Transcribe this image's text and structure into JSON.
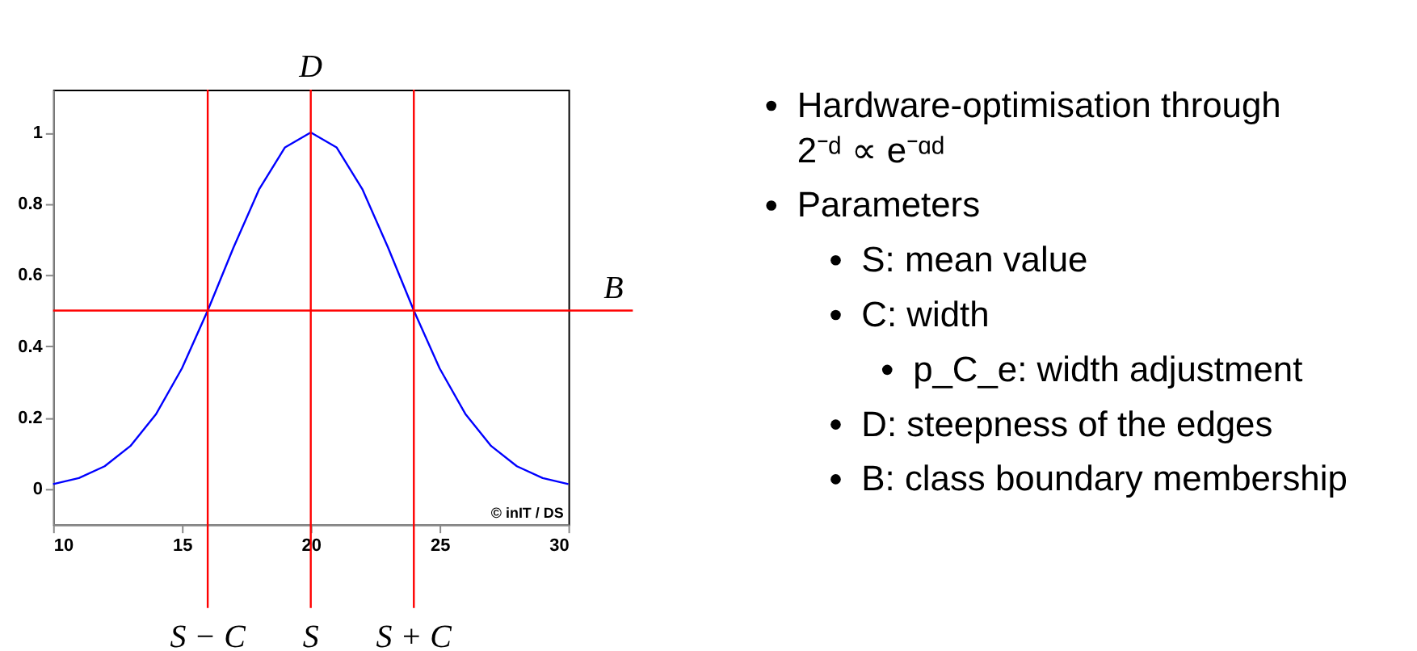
{
  "chart_data": [
    {
      "type": "line",
      "x": [
        10,
        11,
        12,
        13,
        14,
        15,
        16,
        17,
        18,
        19,
        20,
        21,
        22,
        23,
        24,
        25,
        26,
        27,
        28,
        29,
        30
      ],
      "series": [
        {
          "color": "#0000ff",
          "values": [
            0.013,
            0.03,
            0.063,
            0.12,
            0.21,
            0.338,
            0.5,
            0.677,
            0.841,
            0.958,
            1,
            0.958,
            0.841,
            0.677,
            0.5,
            0.338,
            0.21,
            0.12,
            0.063,
            0.03,
            0.013
          ]
        }
      ],
      "xlim": [
        10,
        30
      ],
      "xticks": [
        10,
        15,
        20,
        25,
        30
      ],
      "ylim": [
        -0.1,
        1.12
      ],
      "yticks": [
        0,
        0.2,
        0.4,
        0.6,
        0.8,
        1
      ],
      "grid": false,
      "marker": "none",
      "line_style": "solid",
      "ref_lines": [
        {
          "axis": "y",
          "value": 0.5,
          "label": "B",
          "color": "#ff0000"
        },
        {
          "axis": "x",
          "value": 16,
          "label": "S − C",
          "color": "#ff0000"
        },
        {
          "axis": "x",
          "value": 20,
          "label": "S",
          "color": "#ff0000"
        },
        {
          "axis": "x",
          "value": 24,
          "label": "S + C",
          "color": "#ff0000"
        }
      ],
      "annotations": [
        "D",
        "© inIT / DS"
      ]
    },
    {
      "type": "other",
      "annotations": [
        "Hardware-optimisation through",
        "2⁻ᵈ ∝ e⁻ᵅᵈ",
        "Parameters",
        "S: mean value",
        "C: width",
        "p_C_e: width adjustment",
        "D: steepness of the edges",
        "B: class boundary membership"
      ]
    }
  ]
}
